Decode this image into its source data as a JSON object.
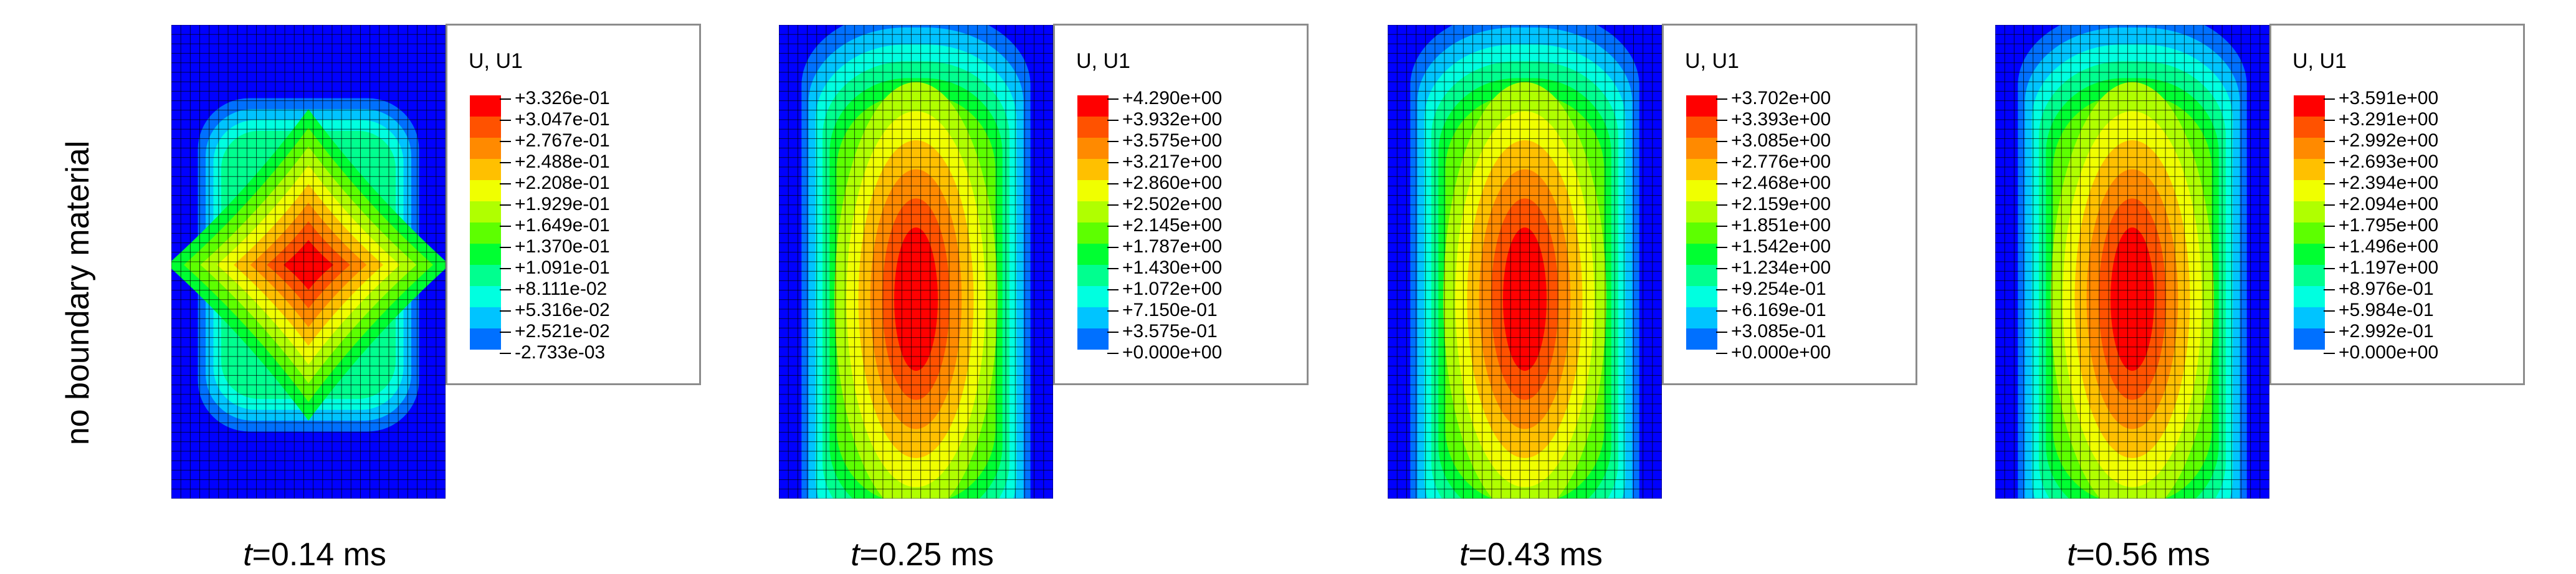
{
  "row_label": "no boundary material",
  "legend_colors": [
    "#ff0000",
    "#ff5200",
    "#ff8a00",
    "#ffc000",
    "#f0ff00",
    "#b0ff00",
    "#5dff00",
    "#00ff32",
    "#00ff8f",
    "#00ffe0",
    "#00c4ff",
    "#0070ff",
    "#0000ff"
  ],
  "panels": [
    {
      "legend_title": "U, U1",
      "values": [
        "+3.326e-01",
        "+3.047e-01",
        "+2.767e-01",
        "+2.488e-01",
        "+2.208e-01",
        "+1.929e-01",
        "+1.649e-01",
        "+1.370e-01",
        "+1.091e-01",
        "+8.111e-02",
        "+5.316e-02",
        "+2.521e-02",
        "-2.733e-03"
      ],
      "time_symbol": "t",
      "time_value": "=0.14 ms",
      "field_shape": "diamond"
    },
    {
      "legend_title": "U, U1",
      "values": [
        "+4.290e+00",
        "+3.932e+00",
        "+3.575e+00",
        "+3.217e+00",
        "+2.860e+00",
        "+2.502e+00",
        "+2.145e+00",
        "+1.787e+00",
        "+1.430e+00",
        "+1.072e+00",
        "+7.150e-01",
        "+3.575e-01",
        "+0.000e+00"
      ],
      "time_symbol": "t",
      "time_value": "=0.25 ms",
      "field_shape": "elongated"
    },
    {
      "legend_title": "U, U1",
      "values": [
        "+3.702e+00",
        "+3.393e+00",
        "+3.085e+00",
        "+2.776e+00",
        "+2.468e+00",
        "+2.159e+00",
        "+1.851e+00",
        "+1.542e+00",
        "+1.234e+00",
        "+9.254e-01",
        "+6.169e-01",
        "+3.085e-01",
        "+0.000e+00"
      ],
      "time_symbol": "t",
      "time_value": "=0.43 ms",
      "field_shape": "elongated"
    },
    {
      "legend_title": "U, U1",
      "values": [
        "+3.591e+00",
        "+3.291e+00",
        "+2.992e+00",
        "+2.693e+00",
        "+2.394e+00",
        "+2.094e+00",
        "+1.795e+00",
        "+1.496e+00",
        "+1.197e+00",
        "+8.976e-01",
        "+5.984e-01",
        "+2.992e-01",
        "+0.000e+00"
      ],
      "time_symbol": "t",
      "time_value": "=0.56 ms",
      "field_shape": "elongated"
    }
  ]
}
